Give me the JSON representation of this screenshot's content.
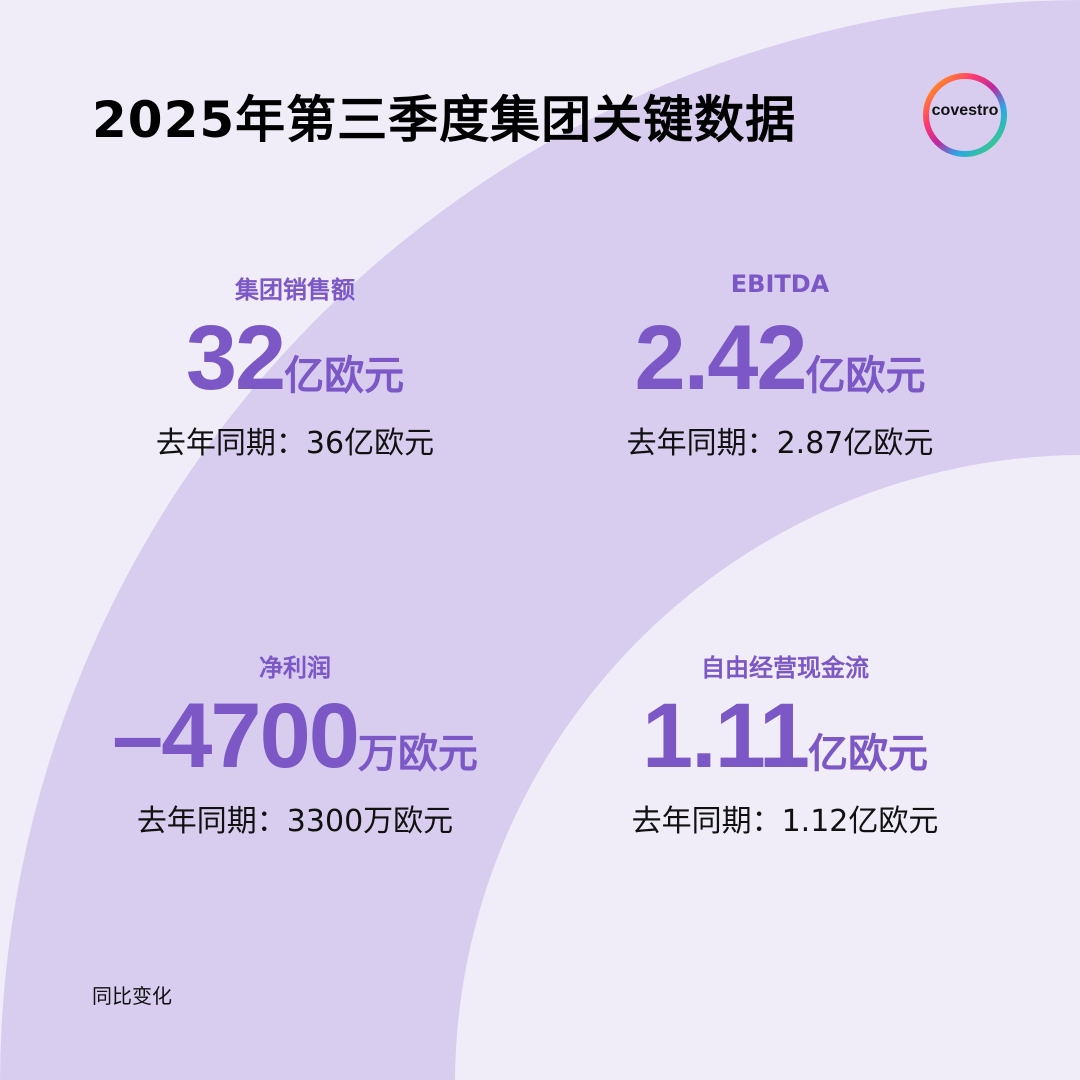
{
  "title": "2025年第三季度集团关键数据",
  "logo": {
    "text": "covestro"
  },
  "colors": {
    "accent": "#7c57c6",
    "band": "#d8cdef",
    "background": "#f0edf8"
  },
  "kpis": [
    {
      "label": "集团销售额",
      "value": "32",
      "unit": "亿欧元",
      "previous": "去年同期：36亿欧元"
    },
    {
      "label": "EBITDA",
      "value": "2.42",
      "unit": "亿欧元",
      "previous": "去年同期：2.87亿欧元"
    },
    {
      "label": "净利润",
      "value": "–4700",
      "unit": "万欧元",
      "previous": "去年同期：3300万欧元"
    },
    {
      "label": "自由经营现金流",
      "value": "1.11",
      "unit": "亿欧元",
      "previous": "去年同期：1.12亿欧元"
    }
  ],
  "footnote": "同比变化"
}
